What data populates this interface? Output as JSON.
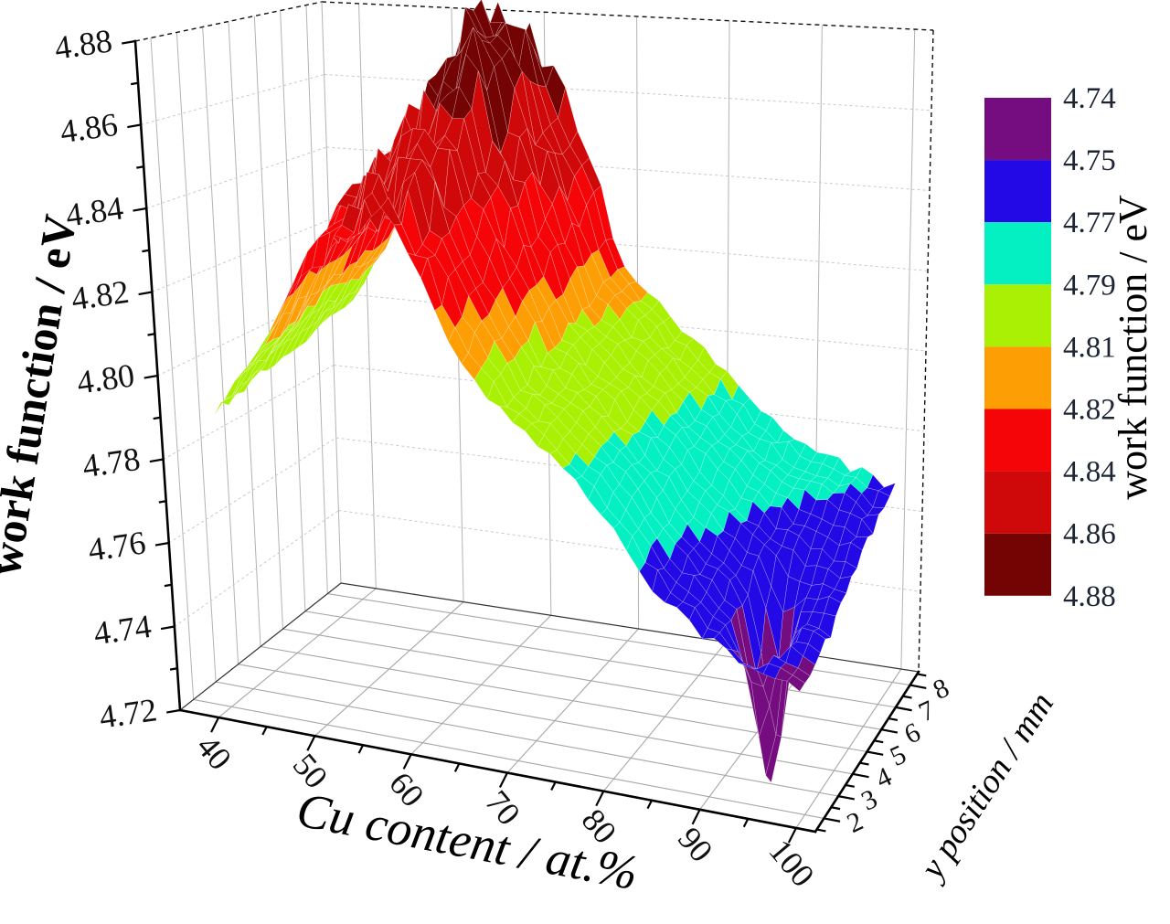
{
  "page": {
    "background": "#ffffff"
  },
  "chart_data": {
    "type": "surface3d",
    "title": "",
    "x_axis": {
      "title": "Cu content / at.%",
      "range": [
        36,
        102
      ],
      "ticks": [
        40,
        50,
        60,
        70,
        80,
        90,
        100
      ],
      "minor_ticks": [
        45,
        55,
        65,
        75,
        85,
        95
      ]
    },
    "y_axis": {
      "title": "y position / mm",
      "range": [
        1.4,
        8.6
      ],
      "ticks": [
        2,
        3,
        4,
        5,
        6,
        7,
        8
      ],
      "minor_ticks": [
        1.5,
        2.5,
        3.5,
        4.5,
        5.5,
        6.5,
        7.5,
        8.5
      ]
    },
    "z_axis": {
      "title": "work function / eV",
      "range": [
        4.72,
        4.88
      ],
      "ticks": [
        "4.72",
        "4.74",
        "4.76",
        "4.78",
        "4.80",
        "4.82",
        "4.84",
        "4.86",
        "4.88"
      ],
      "minor_step": 0.01
    },
    "colorbar": {
      "title": "work function / eV",
      "boundary_labels": [
        "4.74",
        "4.75",
        "4.77",
        "4.79",
        "4.81",
        "4.82",
        "4.84",
        "4.86",
        "4.88"
      ],
      "segments_top_to_bottom": [
        {
          "color": "#750d80",
          "from": 4.74,
          "to": 4.75
        },
        {
          "color": "#2209e6",
          "from": 4.75,
          "to": 4.77
        },
        {
          "color": "#05f0c2",
          "from": 4.77,
          "to": 4.79
        },
        {
          "color": "#aaf005",
          "from": 4.79,
          "to": 4.81
        },
        {
          "color": "#fc9e04",
          "from": 4.81,
          "to": 4.82
        },
        {
          "color": "#f60508",
          "from": 4.82,
          "to": 4.84
        },
        {
          "color": "#cf0909",
          "from": 4.84,
          "to": 4.86
        },
        {
          "color": "#740303",
          "from": 4.86,
          "to": 4.88
        }
      ]
    },
    "surface": {
      "x_values": [
        40,
        45,
        50,
        55,
        60,
        65,
        70,
        75,
        80,
        85,
        90,
        95,
        100
      ],
      "y_values": [
        2,
        3,
        4,
        5,
        6,
        7,
        8
      ],
      "z_grid": [
        [
          4.791,
          4.806,
          4.828,
          4.838,
          4.842,
          4.815,
          4.801,
          4.793,
          4.781,
          4.766,
          4.757,
          4.751,
          4.748
        ],
        [
          4.792,
          4.809,
          4.833,
          4.845,
          4.849,
          4.822,
          4.803,
          4.795,
          4.784,
          4.769,
          4.759,
          4.753,
          4.75
        ],
        [
          4.794,
          4.812,
          4.838,
          4.852,
          4.856,
          4.829,
          4.806,
          4.797,
          4.786,
          4.772,
          4.762,
          4.756,
          4.752
        ],
        [
          4.796,
          4.815,
          4.842,
          4.859,
          4.865,
          4.836,
          4.809,
          4.799,
          4.788,
          4.776,
          4.766,
          4.759,
          4.757
        ],
        [
          4.797,
          4.817,
          4.845,
          4.865,
          4.872,
          4.842,
          4.812,
          4.801,
          4.79,
          4.779,
          4.77,
          4.764,
          4.762
        ],
        [
          4.799,
          4.819,
          4.847,
          4.868,
          4.876,
          4.847,
          4.815,
          4.803,
          4.792,
          4.781,
          4.773,
          4.771,
          4.765
        ],
        [
          4.8,
          4.821,
          4.849,
          4.87,
          4.878,
          4.851,
          4.817,
          4.805,
          4.794,
          4.783,
          4.776,
          4.772,
          4.768
        ]
      ],
      "dip": {
        "x": 94,
        "y": 3.6,
        "depth": 0.042,
        "sigma_x": 1.6,
        "sigma_y": 0.8,
        "min_z": 4.716
      },
      "spikes": [
        {
          "x": 58,
          "y": 6.3,
          "a": 0.011,
          "sx": 1.5,
          "sy": 0.9
        },
        {
          "x": 60.5,
          "y": 5.3,
          "a": 0.009,
          "sx": 1.2,
          "sy": 0.7
        },
        {
          "x": 57,
          "y": 7.4,
          "a": 0.009,
          "sx": 1.3,
          "sy": 0.8
        },
        {
          "x": 62,
          "y": 6.8,
          "a": 0.008,
          "sx": 1.2,
          "sy": 0.7
        }
      ],
      "noise_amp_base": 0.0013,
      "noise_amp_ridge": 0.005
    }
  }
}
